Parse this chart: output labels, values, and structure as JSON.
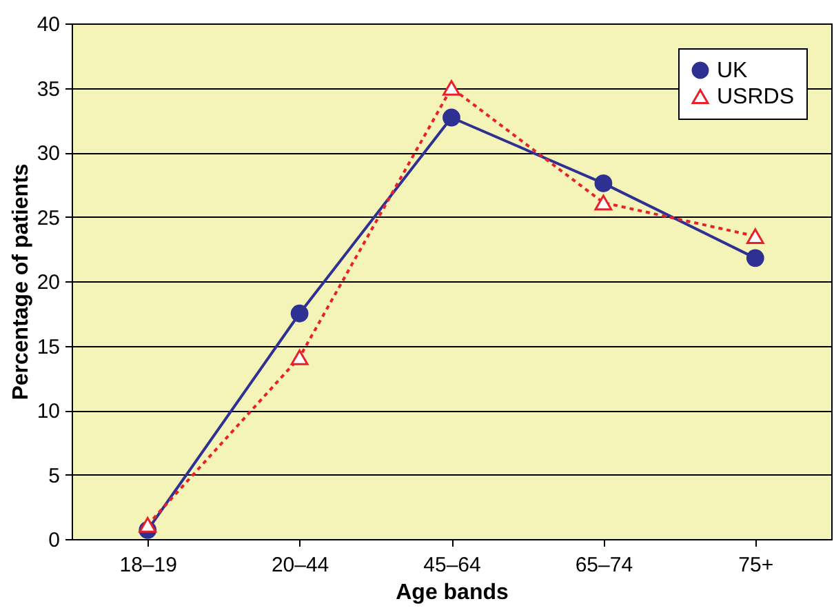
{
  "chart_data": {
    "type": "line",
    "xlabel": "Age bands",
    "ylabel": "Percentage of patients",
    "categories": [
      "18–19",
      "20–44",
      "45–64",
      "65–74",
      "75+"
    ],
    "series": [
      {
        "name": "UK",
        "color": "#2e3192",
        "values": [
          0.7,
          17.5,
          32.7,
          27.6,
          21.8
        ],
        "marker": "circle",
        "line_style": "solid"
      },
      {
        "name": "USRDS",
        "color": "#e8202a",
        "values": [
          1.1,
          14.1,
          35.0,
          26.1,
          23.5
        ],
        "marker": "triangle",
        "line_style": "dotted"
      }
    ],
    "ylim": [
      0,
      40
    ],
    "yticks": [
      0,
      5,
      10,
      15,
      20,
      25,
      30,
      35,
      40
    ],
    "grid": "y",
    "legend": "top right"
  }
}
